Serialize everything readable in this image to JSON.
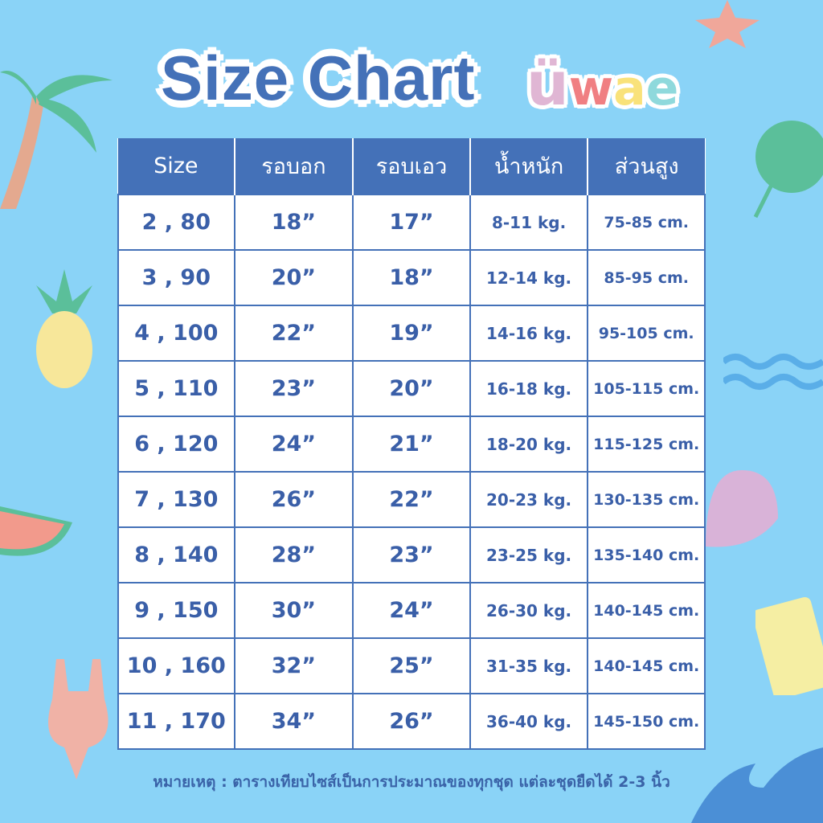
{
  "header": {
    "title": "Size Chart",
    "logo": "Uwae"
  },
  "table": {
    "columns": [
      "Size",
      "รอบอก",
      "รอบเอว",
      "น้ำหนัก",
      "ส่วนสูง"
    ],
    "rows": [
      [
        "2 , 80",
        "18”",
        "17”",
        "8-11 kg.",
        "75-85 cm."
      ],
      [
        "3 , 90",
        "20”",
        "18”",
        "12-14 kg.",
        "85-95 cm."
      ],
      [
        "4 , 100",
        "22”",
        "19”",
        "14-16 kg.",
        "95-105 cm."
      ],
      [
        "5 , 110",
        "23”",
        "20”",
        "16-18 kg.",
        "105-115 cm."
      ],
      [
        "6 , 120",
        "24”",
        "21”",
        "18-20 kg.",
        "115-125 cm."
      ],
      [
        "7 , 130",
        "26”",
        "22”",
        "20-23 kg.",
        "130-135 cm."
      ],
      [
        "8 , 140",
        "28”",
        "23”",
        "23-25 kg.",
        "135-140 cm."
      ],
      [
        "9 , 150",
        "30”",
        "24”",
        "26-30 kg.",
        "140-145 cm."
      ],
      [
        "10 , 160",
        "32”",
        "25”",
        "31-35 kg.",
        "140-145 cm."
      ],
      [
        "11 , 170",
        "34”",
        "26”",
        "36-40 kg.",
        "145-150 cm."
      ]
    ]
  },
  "note": "หมายเหตุ : ตารางเทียบไซส์เป็นการประมาณของทุกชุด แต่ละชุดยืดได้ 2-3 นิ้ว",
  "colors": {
    "background": "#8ad3f7",
    "accent": "#4471b8",
    "text": "#3a5fa8"
  }
}
